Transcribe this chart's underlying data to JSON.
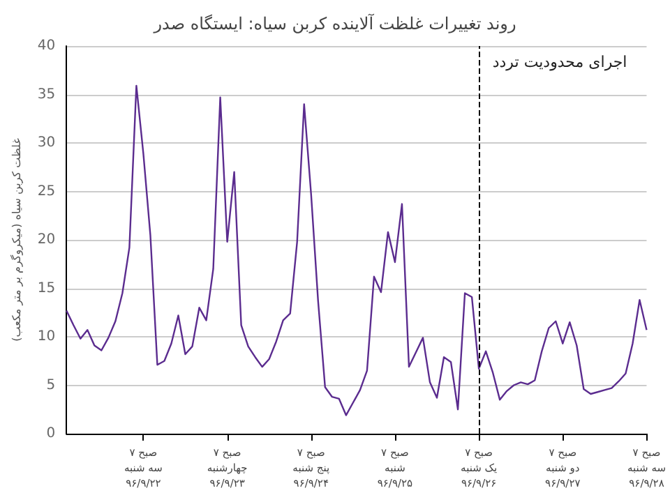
{
  "chart_data": {
    "type": "line",
    "title": "روند تغییرات غلظت آلاینده کربن سیاه: ایستگاه صدر",
    "ylabel": "غلظت کربن سیاه (میکروگرم بر متر مکعب)",
    "categories": [
      null,
      null,
      null,
      null,
      null,
      null,
      null,
      null,
      null,
      null,
      null,
      "۷ صبح\nسه شنبه\n۹۶/۹/۲۲",
      null,
      null,
      null,
      null,
      null,
      null,
      null,
      null,
      null,
      null,
      null,
      "۷ صبح\nچهارشنبه\n۹۶/۹/۲۳",
      null,
      null,
      null,
      null,
      null,
      null,
      null,
      null,
      null,
      null,
      null,
      "۷ صبح\nپنج شنبه\n۹۶/۹/۲۴",
      null,
      null,
      null,
      null,
      null,
      null,
      null,
      null,
      null,
      null,
      null,
      "۷ صبح\nشنبه\n۹۶/۹/۲۵",
      null,
      null,
      null,
      null,
      null,
      null,
      null,
      null,
      null,
      null,
      null,
      "۷ صبح\nیک شنبه\n۹۶/۹/۲۶",
      null,
      null,
      null,
      null,
      null,
      null,
      null,
      null,
      null,
      null,
      null,
      "۷ صبح\nدو شنبه\n۹۶/۹/۲۷",
      null,
      null,
      null,
      null,
      null,
      null,
      null,
      null,
      null,
      null,
      null,
      "۷ صبح\nسه شنبه\n۹۶/۹/۲۸"
    ],
    "series": [
      {
        "color": "#5b2c8f",
        "values": [
          12.7,
          11.2,
          9.8,
          10.7,
          9.1,
          8.6,
          9.9,
          11.6,
          14.5,
          19.2,
          35.9,
          28.9,
          20.5,
          7.1,
          7.5,
          9.3,
          12.2,
          8.2,
          9.0,
          13.0,
          11.7,
          17.0,
          34.7,
          19.8,
          27.0,
          11.2,
          9.0,
          7.9,
          6.9,
          7.7,
          9.5,
          11.7,
          12.4,
          19.8,
          34.0,
          24.7,
          13.7,
          4.8,
          3.8,
          3.6,
          1.9,
          3.2,
          4.5,
          6.5,
          16.2,
          14.6,
          20.8,
          17.7,
          23.7,
          6.9,
          8.4,
          9.9,
          5.3,
          3.7,
          7.9,
          7.4,
          2.5,
          14.5,
          14.1,
          6.7,
          8.5,
          6.3,
          3.5,
          4.4,
          5.0,
          5.3,
          5.1,
          5.5,
          8.5,
          10.9,
          11.6,
          9.3,
          11.5,
          9.1,
          4.6,
          4.1,
          4.3,
          4.5,
          4.7,
          5.4,
          6.2,
          9.3,
          13.8,
          10.7
        ]
      }
    ],
    "ylim": [
      0,
      40
    ],
    "yticks": [
      0,
      5,
      10,
      15,
      20,
      25,
      30,
      35,
      40
    ],
    "grid": "y",
    "marker": "none",
    "line_style": "solid",
    "ref_lines": [
      {
        "axis": "x",
        "value": "۷ صبح\nیک شنبه\n۹۶/۹/۲۶",
        "label": "اجرای محدودیت تردد",
        "color": "#000000",
        "line_style": "dashed"
      }
    ]
  }
}
